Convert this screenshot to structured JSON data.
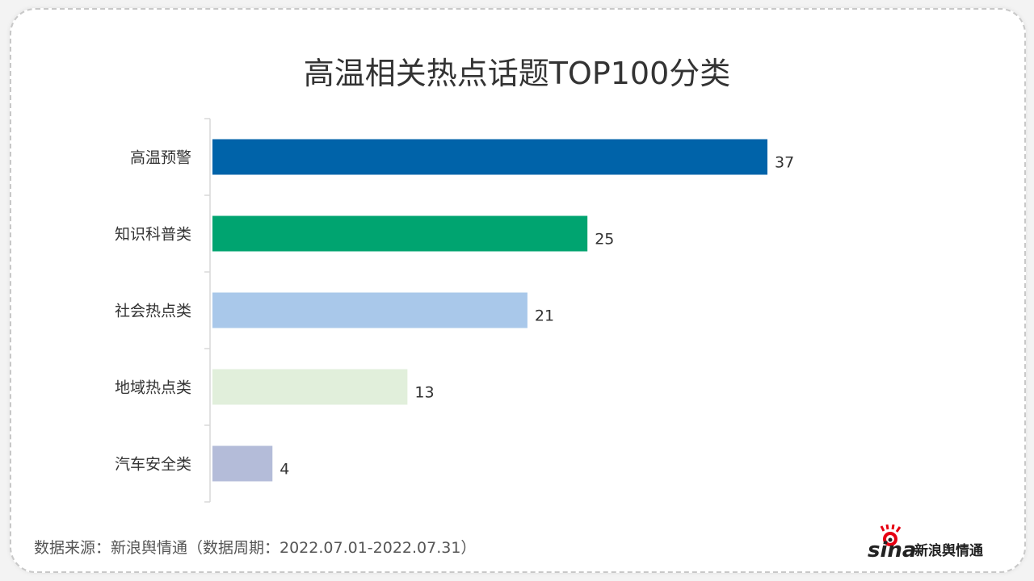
{
  "chart_data": {
    "type": "bar",
    "orientation": "horizontal",
    "title": "高温相关热点话题TOP100分类",
    "categories": [
      "高温预警",
      "知识科普类",
      "社会热点类",
      "地域热点类",
      "汽车安全类"
    ],
    "values": [
      37,
      25,
      21,
      13,
      4
    ],
    "colors": [
      "#0063a9",
      "#00a470",
      "#a9c8ea",
      "#e1efdb",
      "#b4bcd9"
    ],
    "xlim": [
      0,
      40
    ],
    "grid": false,
    "data_labels": true
  },
  "footer": {
    "source": "数据来源：新浪舆情通（数据周期：2022.07.01-2022.07.31）",
    "logo_text": "sina新浪舆情通"
  }
}
